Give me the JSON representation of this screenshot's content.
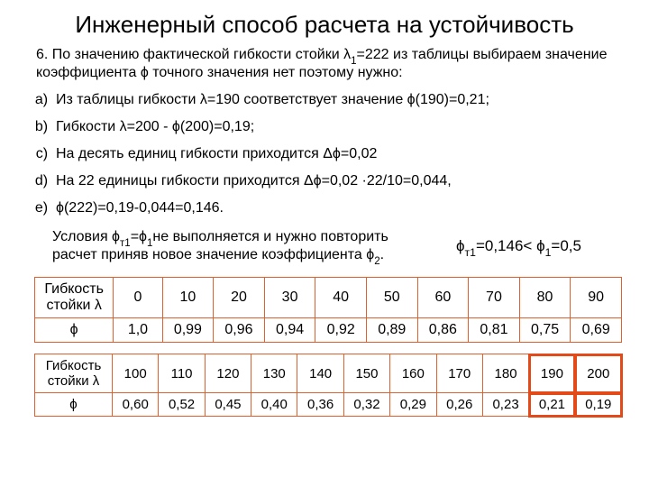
{
  "title": "Инженерный способ расчета на устойчивость",
  "intro_html": "6. По значению фактической гибкости стойки λ<sub>1</sub>=222 из таблицы выбираем значение коэффициента ϕ точного значения нет поэтому нужно:",
  "steps": [
    "Из таблицы гибкости λ=190 соответствует значение ϕ(190)=0,21;",
    "Гибкости λ=200  -  ϕ(200)=0,19;",
    "На десять единиц гибкости приходится Δϕ=0,02",
    "На 22 единицы гибкости приходится Δϕ=0,02 ·22/10=0,044,",
    "ϕ(222)=0,19-0,044=0,146."
  ],
  "condition_left_html": "Условия ϕ<sub>т1</sub>=ϕ<sub>1</sub>не выполняется и нужно повторить расчет приняв новое значение коэффициента ϕ<sub>2</sub>.",
  "condition_right_html": "ϕ<sub>т1</sub>=0,146&lt; ϕ<sub>1</sub>=0,5",
  "table1": {
    "row_label_1": "Гибкость стойки λ",
    "row_label_2": "ϕ",
    "lambda": [
      "0",
      "10",
      "20",
      "30",
      "40",
      "50",
      "60",
      "70",
      "80",
      "90"
    ],
    "phi": [
      "1,0",
      "0,99",
      "0,96",
      "0,94",
      "0,92",
      "0,89",
      "0,86",
      "0,81",
      "0,75",
      "0,69"
    ],
    "border_color": "#e06030",
    "highlight_indices": []
  },
  "table2": {
    "row_label_1": "Гибкость стойки λ",
    "row_label_2": "ϕ",
    "lambda": [
      "100",
      "110",
      "120",
      "130",
      "140",
      "150",
      "160",
      "170",
      "180",
      "190",
      "200"
    ],
    "phi": [
      "0,60",
      "0,52",
      "0,45",
      "0,40",
      "0,36",
      "0,32",
      "0,29",
      "0,26",
      "0,23",
      "0,21",
      "0,19"
    ],
    "border_color": "#e06030",
    "highlight_indices": [
      9,
      10
    ],
    "highlight_color": "#e24a1a"
  },
  "fonts": {
    "title_size_pt": 20,
    "body_size_pt": 12,
    "table_size_pt": 12
  },
  "colors": {
    "background": "#ffffff",
    "text": "#000000",
    "table_border": "#e06030",
    "highlight_border": "#e24a1a"
  }
}
